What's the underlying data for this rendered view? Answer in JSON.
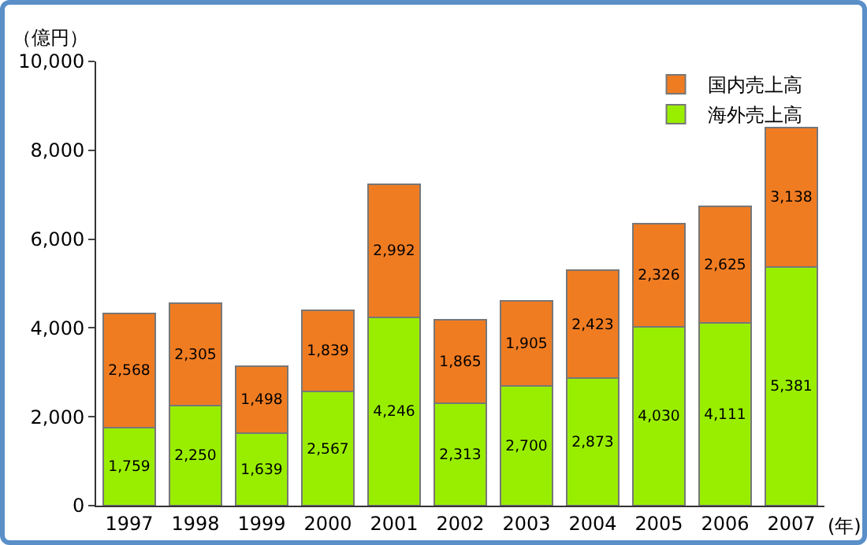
{
  "chart_data": {
    "type": "bar",
    "stacked": true,
    "ylabel": "（億円）",
    "xlabel": "(年)",
    "categories": [
      "1997",
      "1998",
      "1999",
      "2000",
      "2001",
      "2002",
      "2003",
      "2004",
      "2005",
      "2006",
      "2007"
    ],
    "series": [
      {
        "name": "海外売上高",
        "color": "#99ee00",
        "values": [
          1759,
          2250,
          1639,
          2567,
          4246,
          2313,
          2700,
          2873,
          4030,
          4111,
          5381
        ],
        "value_labels": [
          "1,759",
          "2,250",
          "1,639",
          "2,567",
          "4,246",
          "2,313",
          "2,700",
          "2,873",
          "4,030",
          "4,111",
          "5,381"
        ]
      },
      {
        "name": "国内売上高",
        "color": "#f07c22",
        "values": [
          2568,
          2305,
          1498,
          1839,
          2992,
          1865,
          1905,
          2423,
          2326,
          2625,
          3138
        ],
        "value_labels": [
          "2,568",
          "2,305",
          "1,498",
          "1,839",
          "2,992",
          "1,865",
          "1,905",
          "2,423",
          "2,326",
          "2,625",
          "3,138"
        ]
      }
    ],
    "ylim": [
      0,
      10000
    ],
    "yticks": [
      0,
      {
        "value": 2000,
        "label": "2,000"
      },
      {
        "value": 4000,
        "label": "4,000"
      },
      {
        "value": 6000,
        "label": "6,000"
      },
      {
        "value": 8000,
        "label": "8,000"
      },
      {
        "value": 10000,
        "label": "10,000"
      }
    ],
    "grid": false,
    "legend": "top right"
  }
}
